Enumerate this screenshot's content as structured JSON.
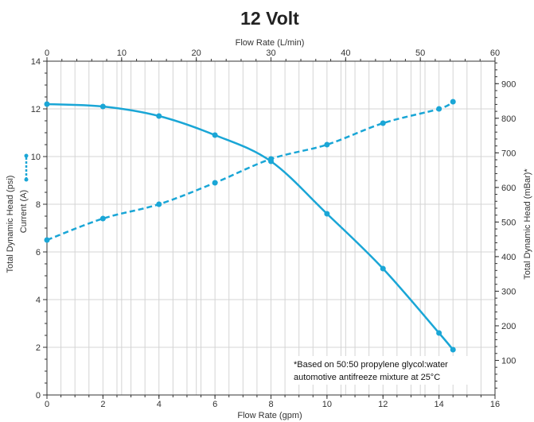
{
  "chart_data": {
    "type": "line",
    "title": "12 Volt",
    "xlabel": "Flow Rate (gpm)",
    "x2label": "Flow Rate (L/min)",
    "ylabel": "Total Dynamic Head (psi)",
    "ylabel_secondary": "Current (A)",
    "y2label": "Total Dynamic Head (mBar)*",
    "xlim": [
      0,
      16
    ],
    "ylim": [
      0,
      14
    ],
    "x2lim": [
      0,
      60
    ],
    "y2lim": [
      0,
      965
    ],
    "xticks": [
      0,
      2,
      4,
      6,
      8,
      10,
      12,
      14,
      16
    ],
    "yticks": [
      0,
      2,
      4,
      6,
      8,
      10,
      12,
      14
    ],
    "x2ticks": [
      0,
      10,
      20,
      30,
      40,
      50,
      60
    ],
    "y2ticks": [
      100,
      200,
      300,
      400,
      500,
      600,
      700,
      800,
      900
    ],
    "grid": true,
    "line_color": "#1aa6d6",
    "series": [
      {
        "style": "solid",
        "x": [
          0,
          2,
          4,
          6,
          8,
          10,
          12,
          14,
          14.5
        ],
        "y": [
          12.2,
          12.1,
          11.7,
          10.9,
          9.8,
          7.6,
          5.3,
          2.6,
          1.9
        ]
      },
      {
        "style": "dashed",
        "x": [
          0,
          2,
          4,
          6,
          8,
          10,
          12,
          14,
          14.5
        ],
        "y": [
          6.5,
          7.4,
          8.0,
          8.9,
          9.9,
          10.5,
          11.4,
          12.0,
          12.3
        ]
      }
    ],
    "annotation": [
      "*Based on 50:50 propylene glycol:water",
      "automotive antifreeze mixture at 25°C"
    ]
  }
}
